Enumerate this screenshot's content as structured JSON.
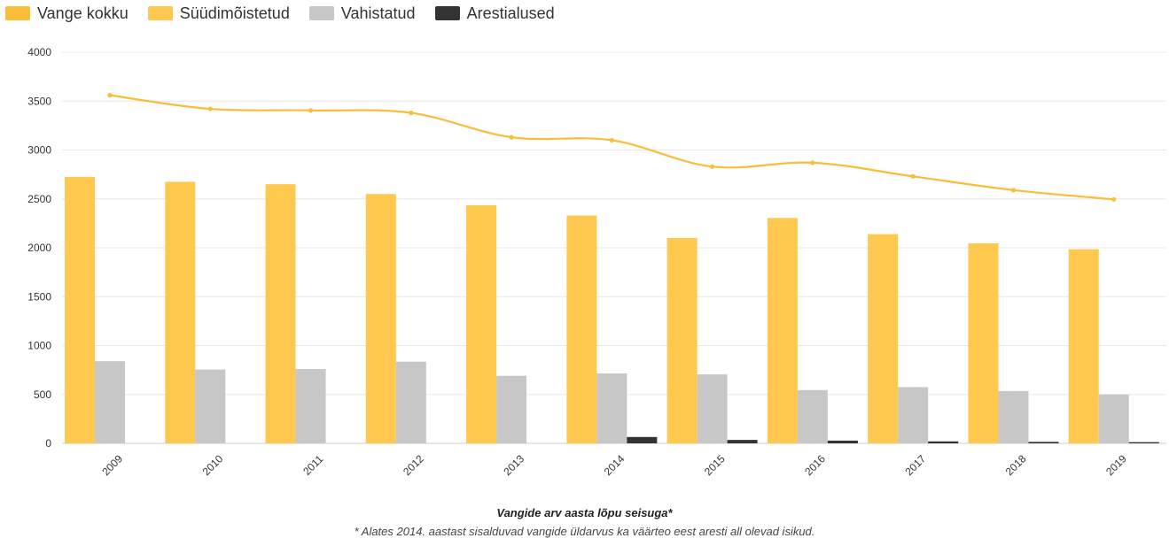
{
  "colors": {
    "total": "#F9BD38",
    "convicted": "#FFC94F",
    "detained": "#C7C7C7",
    "arrested": "#333333",
    "grid": "#E8E8E8",
    "axis": "#CCCCCC"
  },
  "chart_data": {
    "type": "bar",
    "title": "Vangide arv aasta lõpu seisuga*",
    "footnote": "* Alates 2014. aastast sisalduvad vangide üldarvus ka väärteo eest aresti all olevad isikud.",
    "xlabel": "",
    "ylabel": "",
    "ylim": [
      0,
      4000
    ],
    "yticks": [
      0,
      500,
      1000,
      1500,
      2000,
      2500,
      3000,
      3500,
      4000
    ],
    "grid": true,
    "legend_position": "top-left",
    "categories": [
      "2009",
      "2010",
      "2011",
      "2012",
      "2013",
      "2014",
      "2015",
      "2016",
      "2017",
      "2018",
      "2019"
    ],
    "series": [
      {
        "name": "Vange kokku",
        "type": "line",
        "color_key": "total",
        "values": [
          3560,
          3420,
          3405,
          3380,
          3130,
          3100,
          2830,
          2870,
          2730,
          2590,
          2495
        ]
      },
      {
        "name": "Süüdimõistetud",
        "type": "bar",
        "color_key": "convicted",
        "values": [
          2725,
          2675,
          2650,
          2550,
          2435,
          2330,
          2100,
          2305,
          2140,
          2045,
          1985
        ]
      },
      {
        "name": "Vahistatud",
        "type": "bar",
        "color_key": "detained",
        "values": [
          840,
          755,
          760,
          835,
          690,
          715,
          705,
          545,
          575,
          535,
          500
        ]
      },
      {
        "name": "Arestialused",
        "type": "bar",
        "color_key": "arrested",
        "values": [
          0,
          0,
          0,
          0,
          0,
          65,
          35,
          28,
          20,
          15,
          12
        ]
      }
    ]
  }
}
